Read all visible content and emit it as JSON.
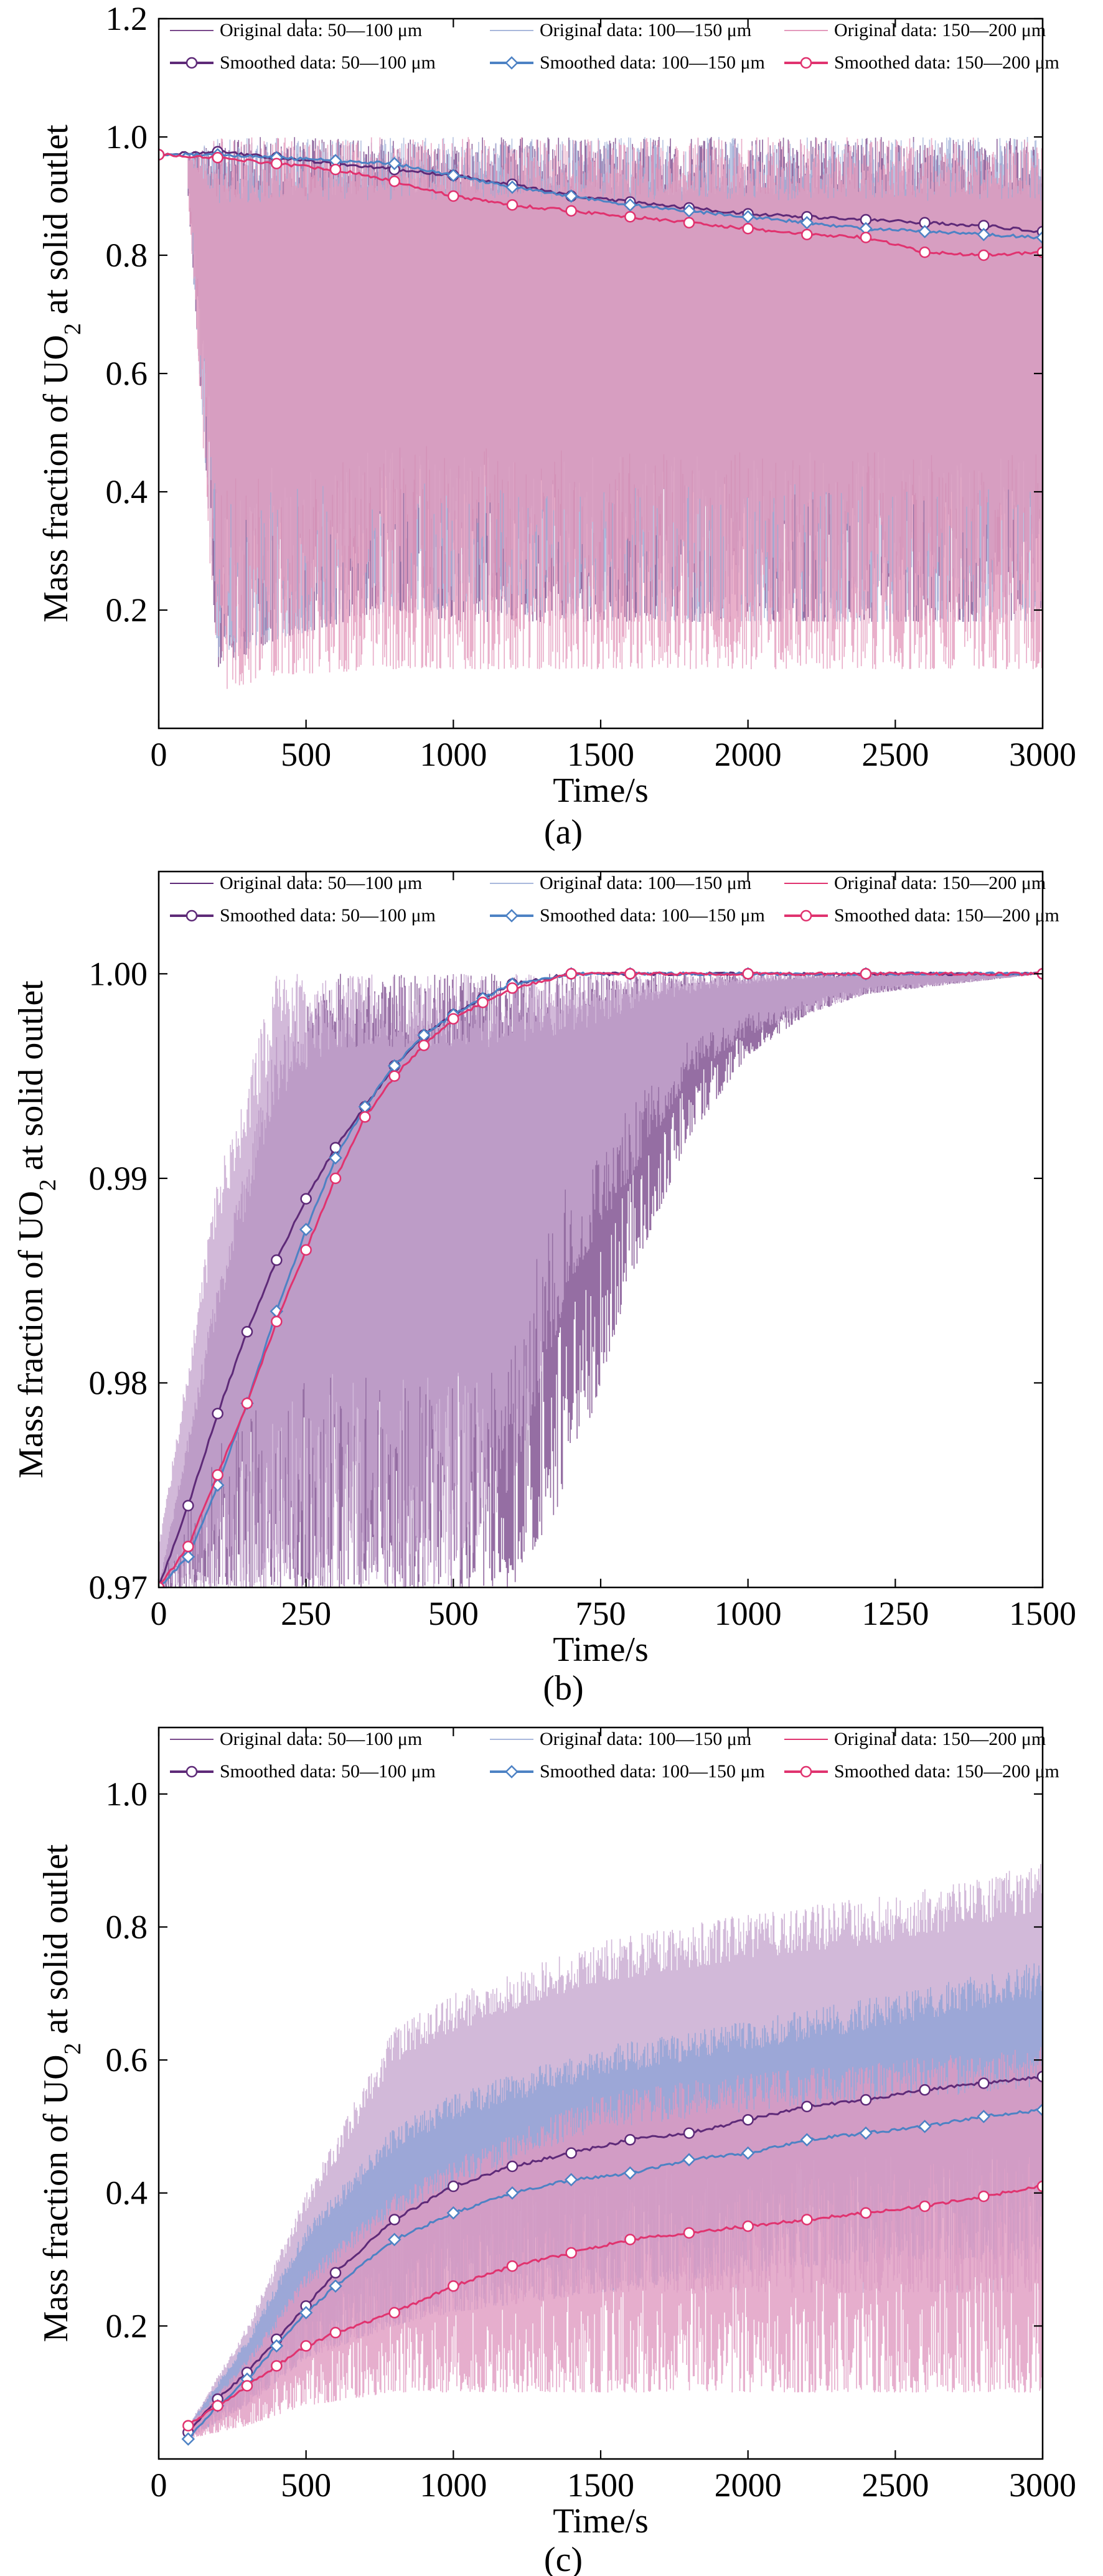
{
  "chart_data": [
    {
      "type": "line",
      "panel_label": "(a)",
      "xlabel": "Time/s",
      "ylabel_pre": "Mass fraction of UO",
      "ylabel_sub": "2",
      "ylabel_post": " at solid outlet",
      "xlim": [
        0,
        3000
      ],
      "ylim": [
        0.0,
        1.2
      ],
      "xticks": [
        0,
        500,
        1000,
        1500,
        2000,
        2500,
        3000
      ],
      "yticks": [
        0.2,
        0.4,
        0.6,
        0.8,
        1.0,
        1.2
      ],
      "xtick_labels": [
        "0",
        "500",
        "1000",
        "1500",
        "2000",
        "2500",
        "3000"
      ],
      "ytick_labels": [
        "0.2",
        "0.4",
        "0.6",
        "0.8",
        "1.0",
        "1.2"
      ],
      "legend_position": "top",
      "legend": [
        {
          "label": "Original data: 50—100 μm",
          "kind": "original",
          "color": "#7a4a8c"
        },
        {
          "label": "Original data: 100—150 μm",
          "kind": "original",
          "color": "#a9b8dc"
        },
        {
          "label": "Original data: 150—200 μm",
          "kind": "original",
          "color": "#e39bbd"
        },
        {
          "label": "Smoothed data: 50—100 μm",
          "kind": "smoothed",
          "color": "#5e2a78",
          "marker": "circle"
        },
        {
          "label": "Smoothed data: 100—150 μm",
          "kind": "smoothed",
          "color": "#4d82c4",
          "marker": "diamond"
        },
        {
          "label": "Smoothed data: 150—200 μm",
          "kind": "smoothed",
          "color": "#e0336f",
          "marker": "circle"
        }
      ],
      "noise_bands": [
        {
          "name": "Original data: 50—100 μm",
          "color": "#7a4a8c",
          "x": [
            100,
            200,
            400,
            800,
            1000,
            1500,
            2000,
            2500,
            3000
          ],
          "upper": [
            0.97,
            1.0,
            1.0,
            1.0,
            1.0,
            1.0,
            1.0,
            1.0,
            1.0
          ],
          "lower": [
            0.9,
            0.1,
            0.15,
            0.2,
            0.18,
            0.18,
            0.18,
            0.18,
            0.18
          ]
        },
        {
          "name": "Original data: 100—150 μm",
          "color": "#a9b8dc",
          "x": [
            100,
            200,
            400,
            800,
            1000,
            1500,
            2000,
            2500,
            3000
          ],
          "upper": [
            0.97,
            1.0,
            1.0,
            1.0,
            1.0,
            1.0,
            1.0,
            1.0,
            1.0
          ],
          "lower": [
            0.9,
            0.12,
            0.15,
            0.2,
            0.2,
            0.18,
            0.18,
            0.18,
            0.18
          ]
        },
        {
          "name": "Original data: 150—200 μm",
          "color": "#e39bbd",
          "x": [
            100,
            200,
            400,
            800,
            1000,
            1500,
            2000,
            2500,
            3000
          ],
          "upper": [
            0.97,
            1.0,
            1.0,
            1.0,
            1.0,
            1.0,
            1.0,
            1.0,
            1.0
          ],
          "lower": [
            0.9,
            0.06,
            0.09,
            0.1,
            0.1,
            0.1,
            0.1,
            0.1,
            0.1
          ]
        }
      ],
      "series": [
        {
          "name": "Smoothed data: 50—100 μm",
          "color": "#5e2a78",
          "marker": "circle",
          "x": [
            0,
            200,
            400,
            600,
            800,
            1000,
            1200,
            1400,
            1600,
            1800,
            2000,
            2200,
            2400,
            2600,
            2800,
            3000
          ],
          "values": [
            0.97,
            0.975,
            0.965,
            0.955,
            0.945,
            0.935,
            0.92,
            0.9,
            0.89,
            0.88,
            0.87,
            0.865,
            0.86,
            0.855,
            0.85,
            0.84
          ]
        },
        {
          "name": "Smoothed data: 100—150 μm",
          "color": "#4d82c4",
          "marker": "diamond",
          "x": [
            0,
            200,
            400,
            600,
            800,
            1000,
            1200,
            1400,
            1600,
            1800,
            2000,
            2200,
            2400,
            2600,
            2800,
            3000
          ],
          "values": [
            0.97,
            0.97,
            0.965,
            0.96,
            0.955,
            0.935,
            0.915,
            0.9,
            0.885,
            0.875,
            0.865,
            0.855,
            0.845,
            0.84,
            0.835,
            0.83
          ]
        },
        {
          "name": "Smoothed data: 150—200 μm",
          "color": "#e0336f",
          "marker": "circle",
          "x": [
            0,
            200,
            400,
            600,
            800,
            1000,
            1200,
            1400,
            1600,
            1800,
            2000,
            2200,
            2400,
            2600,
            2800,
            3000
          ],
          "values": [
            0.97,
            0.965,
            0.955,
            0.945,
            0.925,
            0.9,
            0.885,
            0.875,
            0.865,
            0.855,
            0.845,
            0.835,
            0.83,
            0.805,
            0.8,
            0.805
          ]
        }
      ]
    },
    {
      "type": "line",
      "panel_label": "(b)",
      "xlabel": "Time/s",
      "ylabel_pre": "Mass fraction of UO",
      "ylabel_sub": "2",
      "ylabel_post": " at solid outlet",
      "xlim": [
        0,
        1500
      ],
      "ylim": [
        0.97,
        1.005
      ],
      "xticks": [
        0,
        250,
        500,
        750,
        1000,
        1250,
        1500
      ],
      "yticks": [
        0.97,
        0.98,
        0.99,
        1.0
      ],
      "xtick_labels": [
        "0",
        "250",
        "500",
        "750",
        "1000",
        "1250",
        "1500"
      ],
      "ytick_labels": [
        "0.97",
        "0.98",
        "0.99",
        "1.00"
      ],
      "legend_position": "top",
      "legend": [
        {
          "label": "Original data: 50—100 μm",
          "kind": "original",
          "color": "#5e2a78"
        },
        {
          "label": "Original data: 100—150 μm",
          "kind": "original",
          "color": "#a9b8dc"
        },
        {
          "label": "Original data: 150—200 μm",
          "kind": "original",
          "color": "#e0336f"
        },
        {
          "label": "Smoothed data: 50—100 μm",
          "kind": "smoothed",
          "color": "#5e2a78",
          "marker": "circle"
        },
        {
          "label": "Smoothed data: 100—150 μm",
          "kind": "smoothed",
          "color": "#4d82c4",
          "marker": "diamond"
        },
        {
          "label": "Smoothed data: 150—200 μm",
          "kind": "smoothed",
          "color": "#e0336f",
          "marker": "circle"
        }
      ],
      "noise_bands": [
        {
          "name": "Original data: 50—100 μm",
          "color": "#7a4a8c",
          "x": [
            0,
            100,
            200,
            300,
            400,
            500,
            600,
            700,
            800,
            900,
            1000,
            1100,
            1200,
            1500
          ],
          "upper": [
            0.97,
            0.985,
            0.997,
            1.0,
            1.0,
            1.0,
            1.0,
            1.0,
            1.0,
            1.0,
            1.0,
            1.0,
            1.0,
            1.0
          ],
          "lower": [
            0.97,
            0.97,
            0.97,
            0.97,
            0.97,
            0.97,
            0.97,
            0.975,
            0.985,
            0.992,
            0.996,
            0.998,
            0.999,
            1.0
          ]
        },
        {
          "name": "Original data: 100—150 μm",
          "color": "#c7a7cf",
          "x": [
            0,
            100,
            200,
            300,
            400,
            500,
            600,
            700,
            800,
            900,
            1000,
            1100,
            1200,
            1500
          ],
          "upper": [
            0.972,
            0.99,
            1.0,
            1.0,
            1.0,
            1.0,
            1.0,
            1.0,
            1.0,
            1.0,
            1.0,
            1.0,
            1.0,
            1.0
          ],
          "lower": [
            0.97,
            0.97,
            0.97,
            0.97,
            0.97,
            0.97,
            0.975,
            0.985,
            0.99,
            0.995,
            0.997,
            0.998,
            0.999,
            1.0
          ]
        }
      ],
      "series": [
        {
          "name": "Smoothed data: 50—100 μm",
          "color": "#5e2a78",
          "marker": "circle",
          "x": [
            0,
            50,
            100,
            150,
            200,
            250,
            300,
            350,
            400,
            450,
            500,
            550,
            600,
            700,
            800,
            1000,
            1200,
            1500
          ],
          "values": [
            0.97,
            0.974,
            0.9785,
            0.9825,
            0.986,
            0.989,
            0.9915,
            0.9935,
            0.9955,
            0.997,
            0.998,
            0.9988,
            0.9995,
            1.0,
            1.0,
            1.0,
            1.0,
            1.0
          ]
        },
        {
          "name": "Smoothed data: 100—150 μm",
          "color": "#4d82c4",
          "marker": "diamond",
          "x": [
            0,
            50,
            100,
            150,
            200,
            250,
            300,
            350,
            400,
            450,
            500,
            550,
            600,
            700,
            800,
            1000,
            1200,
            1500
          ],
          "values": [
            0.97,
            0.9715,
            0.975,
            0.979,
            0.9835,
            0.9875,
            0.991,
            0.9935,
            0.9955,
            0.997,
            0.998,
            0.9988,
            0.9995,
            1.0,
            1.0,
            1.0,
            1.0,
            1.0
          ]
        },
        {
          "name": "Smoothed data: 150—200 μm",
          "color": "#e0336f",
          "marker": "circle",
          "x": [
            0,
            50,
            100,
            150,
            200,
            250,
            300,
            350,
            400,
            450,
            500,
            550,
            600,
            700,
            800,
            1000,
            1200,
            1500
          ],
          "values": [
            0.97,
            0.972,
            0.9755,
            0.979,
            0.983,
            0.9865,
            0.99,
            0.993,
            0.995,
            0.9965,
            0.9978,
            0.9986,
            0.9993,
            1.0,
            1.0,
            1.0,
            1.0,
            1.0
          ]
        }
      ]
    },
    {
      "type": "line",
      "panel_label": "(c)",
      "xlabel": "Time/s",
      "ylabel_pre": "Mass fraction of UO",
      "ylabel_sub": "2",
      "ylabel_post": " at solid outlet",
      "xlim": [
        0,
        3000
      ],
      "ylim": [
        0.0,
        1.1
      ],
      "xticks": [
        0,
        500,
        1000,
        1500,
        2000,
        2500,
        3000
      ],
      "yticks": [
        0.2,
        0.4,
        0.6,
        0.8,
        1.0
      ],
      "xtick_labels": [
        "0",
        "500",
        "1000",
        "1500",
        "2000",
        "2500",
        "3000"
      ],
      "ytick_labels": [
        "0.2",
        "0.4",
        "0.6",
        "0.8",
        "1.0"
      ],
      "legend_position": "top",
      "legend": [
        {
          "label": "Original data: 50—100 μm",
          "kind": "original",
          "color": "#7a4a8c"
        },
        {
          "label": "Original data: 100—150 μm",
          "kind": "original",
          "color": "#a9b8dc"
        },
        {
          "label": "Original data: 150—200 μm",
          "kind": "original",
          "color": "#e0336f"
        },
        {
          "label": "Smoothed data: 50—100 μm",
          "kind": "smoothed",
          "color": "#5e2a78",
          "marker": "circle"
        },
        {
          "label": "Smoothed data: 100—150 μm",
          "kind": "smoothed",
          "color": "#4d82c4",
          "marker": "diamond"
        },
        {
          "label": "Smoothed data: 150—200 μm",
          "kind": "smoothed",
          "color": "#e0336f",
          "marker": "circle"
        }
      ],
      "noise_bands": [
        {
          "name": "Original data: 50—100 μm",
          "color": "#c7a7cf",
          "x": [
            100,
            300,
            500,
            800,
            1000,
            1500,
            2000,
            2500,
            3000
          ],
          "upper": [
            0.05,
            0.2,
            0.4,
            0.65,
            0.7,
            0.78,
            0.82,
            0.85,
            0.9
          ],
          "lower": [
            0.03,
            0.08,
            0.15,
            0.2,
            0.22,
            0.25,
            0.25,
            0.25,
            0.25
          ]
        },
        {
          "name": "Original data: 100—150 μm",
          "color": "#8fa3d6",
          "x": [
            100,
            300,
            500,
            800,
            1000,
            1500,
            2000,
            2500,
            3000
          ],
          "upper": [
            0.05,
            0.18,
            0.35,
            0.5,
            0.55,
            0.62,
            0.66,
            0.7,
            0.75
          ],
          "lower": [
            0.03,
            0.08,
            0.15,
            0.2,
            0.22,
            0.25,
            0.28,
            0.3,
            0.3
          ]
        },
        {
          "name": "Original data: 150—200 μm",
          "color": "#e09ac0",
          "x": [
            100,
            300,
            500,
            800,
            1000,
            1500,
            2000,
            2500,
            3000
          ],
          "upper": [
            0.05,
            0.15,
            0.28,
            0.4,
            0.45,
            0.55,
            0.58,
            0.6,
            0.62
          ],
          "lower": [
            0.03,
            0.05,
            0.08,
            0.1,
            0.1,
            0.1,
            0.1,
            0.1,
            0.1
          ]
        }
      ],
      "series": [
        {
          "name": "Smoothed data: 50—100 μm",
          "color": "#5e2a78",
          "marker": "circle",
          "x": [
            100,
            200,
            300,
            400,
            500,
            600,
            800,
            1000,
            1200,
            1400,
            1600,
            1800,
            2000,
            2200,
            2400,
            2600,
            2800,
            3000
          ],
          "values": [
            0.04,
            0.09,
            0.13,
            0.18,
            0.23,
            0.28,
            0.36,
            0.41,
            0.44,
            0.46,
            0.48,
            0.49,
            0.51,
            0.53,
            0.54,
            0.555,
            0.565,
            0.575
          ]
        },
        {
          "name": "Smoothed data: 100—150 μm",
          "color": "#4d82c4",
          "marker": "diamond",
          "x": [
            100,
            200,
            300,
            400,
            500,
            600,
            800,
            1000,
            1200,
            1400,
            1600,
            1800,
            2000,
            2200,
            2400,
            2600,
            2800,
            3000
          ],
          "values": [
            0.03,
            0.08,
            0.12,
            0.17,
            0.22,
            0.26,
            0.33,
            0.37,
            0.4,
            0.42,
            0.43,
            0.45,
            0.46,
            0.48,
            0.49,
            0.5,
            0.515,
            0.525
          ]
        },
        {
          "name": "Smoothed data: 150—200 μm",
          "color": "#e0336f",
          "marker": "circle",
          "x": [
            100,
            200,
            300,
            400,
            500,
            600,
            800,
            1000,
            1200,
            1400,
            1600,
            1800,
            2000,
            2200,
            2400,
            2600,
            2800,
            3000
          ],
          "values": [
            0.05,
            0.08,
            0.11,
            0.14,
            0.17,
            0.19,
            0.22,
            0.26,
            0.29,
            0.31,
            0.33,
            0.34,
            0.35,
            0.36,
            0.37,
            0.38,
            0.395,
            0.41
          ]
        }
      ]
    }
  ]
}
